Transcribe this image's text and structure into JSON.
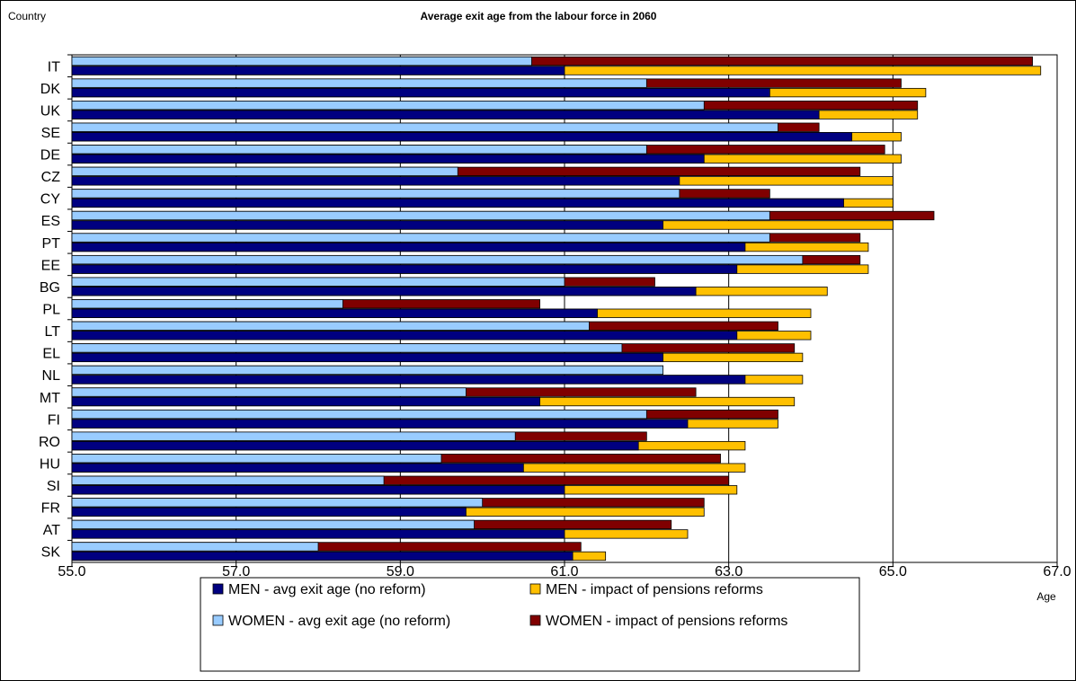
{
  "chart_data": {
    "type": "bar",
    "orientation": "horizontal",
    "title": "Average exit age from the labour force in 2060",
    "ylabel": "Country",
    "xlabel": "Age",
    "xlim": [
      55.0,
      67.0
    ],
    "x_ticks": [
      "55.0",
      "57.0",
      "59.0",
      "61.0",
      "63.0",
      "65.0",
      "67.0"
    ],
    "grid": "vertical",
    "legend_position": "bottom",
    "categories": [
      "IT",
      "DK",
      "UK",
      "SE",
      "DE",
      "CZ",
      "CY",
      "ES",
      "PT",
      "EE",
      "BG",
      "PL",
      "LT",
      "EL",
      "NL",
      "MT",
      "FI",
      "RO",
      "HU",
      "SI",
      "FR",
      "AT",
      "SK"
    ],
    "series": [
      {
        "name": "MEN - avg exit age (no reform)",
        "color": "#000080",
        "values": [
          61.0,
          63.5,
          64.1,
          64.5,
          62.7,
          62.4,
          64.4,
          62.2,
          63.2,
          63.1,
          62.6,
          61.4,
          63.1,
          62.2,
          63.2,
          60.7,
          62.5,
          61.9,
          60.5,
          61.0,
          59.8,
          61.0,
          61.1
        ]
      },
      {
        "name": "MEN - impact of pensions reforms",
        "color": "#FFC000",
        "values": [
          66.8,
          65.4,
          65.3,
          65.1,
          65.1,
          65.0,
          65.0,
          65.0,
          64.7,
          64.7,
          64.2,
          64.0,
          64.0,
          63.9,
          63.9,
          63.8,
          63.6,
          63.2,
          63.2,
          63.1,
          62.7,
          62.5,
          61.5
        ]
      },
      {
        "name": "WOMEN - avg exit age (no reform)",
        "color": "#99CCFF",
        "values": [
          60.6,
          62.0,
          62.7,
          63.6,
          62.0,
          59.7,
          62.4,
          63.5,
          63.5,
          63.9,
          61.0,
          58.3,
          61.3,
          61.7,
          62.2,
          59.8,
          62.0,
          60.4,
          59.5,
          58.8,
          60.0,
          59.9,
          58.0
        ]
      },
      {
        "name": "WOMEN - impact of pensions reforms",
        "color": "#800000",
        "values": [
          66.7,
          65.1,
          65.3,
          64.1,
          64.9,
          64.6,
          63.5,
          65.5,
          64.6,
          64.6,
          62.1,
          60.7,
          63.6,
          63.8,
          62.2,
          62.6,
          63.6,
          62.0,
          62.9,
          63.0,
          62.7,
          62.3,
          61.2
        ]
      }
    ]
  }
}
